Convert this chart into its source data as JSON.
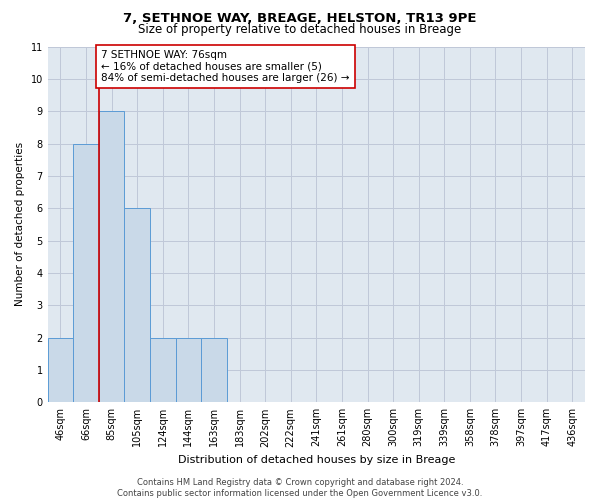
{
  "title1": "7, SETHNOE WAY, BREAGE, HELSTON, TR13 9PE",
  "title2": "Size of property relative to detached houses in Breage",
  "xlabel": "Distribution of detached houses by size in Breage",
  "ylabel": "Number of detached properties",
  "bin_labels": [
    "46sqm",
    "66sqm",
    "85sqm",
    "105sqm",
    "124sqm",
    "144sqm",
    "163sqm",
    "183sqm",
    "202sqm",
    "222sqm",
    "241sqm",
    "261sqm",
    "280sqm",
    "300sqm",
    "319sqm",
    "339sqm",
    "358sqm",
    "378sqm",
    "397sqm",
    "417sqm",
    "436sqm"
  ],
  "bar_values": [
    2,
    8,
    9,
    6,
    2,
    2,
    2,
    0,
    0,
    0,
    0,
    0,
    0,
    0,
    0,
    0,
    0,
    0,
    0,
    0,
    0
  ],
  "bar_color": "#c9d9e8",
  "bar_edge_color": "#5b9bd5",
  "grid_color": "#c0c8d8",
  "background_color": "#e0e8f0",
  "vline_x": 1.52,
  "vline_color": "#cc0000",
  "annotation_text": "7 SETHNOE WAY: 76sqm\n← 16% of detached houses are smaller (5)\n84% of semi-detached houses are larger (26) →",
  "annotation_box_color": "#ffffff",
  "annotation_box_edge": "#cc0000",
  "ylim": [
    0,
    11
  ],
  "yticks": [
    0,
    1,
    2,
    3,
    4,
    5,
    6,
    7,
    8,
    9,
    10,
    11
  ],
  "footer": "Contains HM Land Registry data © Crown copyright and database right 2024.\nContains public sector information licensed under the Open Government Licence v3.0.",
  "title1_fontsize": 9.5,
  "title2_fontsize": 8.5,
  "xlabel_fontsize": 8,
  "ylabel_fontsize": 7.5,
  "tick_fontsize": 7,
  "annotation_fontsize": 7.5,
  "footer_fontsize": 6
}
